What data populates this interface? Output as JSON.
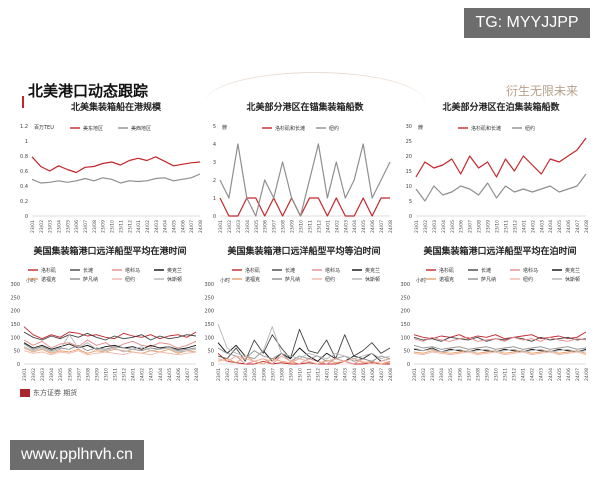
{
  "watermarks": {
    "top": "TG: MYYJJPP",
    "bottom": "www.pplhrvh.cn"
  },
  "slide": {
    "title": "北美港口动态跟踪",
    "slogan": "衍生无限未来",
    "brand": "东方证券 期货"
  },
  "colors": {
    "red": "#c3262b",
    "gray": "#8f8f8f",
    "darkgray": "#444444",
    "pink": "#e58b8b",
    "orange": "#e8a06a",
    "black": "#111111",
    "lightgray": "#b5b5b5",
    "salmon": "#f2b7a8"
  },
  "chart_data": [
    {
      "type": "line",
      "title": "北美集装箱船在港规模",
      "unit": "百万TEU",
      "ylim": [
        0,
        1.2
      ],
      "yticks": [
        "0",
        "0.2",
        "0.4",
        "0.6",
        "0.8",
        "1",
        "1.2"
      ],
      "xticks": [
        "23/01",
        "23/02",
        "23/03",
        "23/04",
        "23/05",
        "23/06",
        "23/07",
        "23/08",
        "23/09",
        "23/10",
        "23/11",
        "23/12",
        "24/01",
        "24/02",
        "24/03",
        "24/04",
        "24/05",
        "24/06",
        "24/07",
        "24/08"
      ],
      "legend": [
        "美东地区",
        "美西地区"
      ],
      "series": [
        {
          "name": "美东地区",
          "color": "red",
          "values": [
            0.79,
            0.66,
            0.6,
            0.67,
            0.62,
            0.58,
            0.65,
            0.66,
            0.7,
            0.72,
            0.68,
            0.74,
            0.77,
            0.74,
            0.79,
            0.73,
            0.67,
            0.69,
            0.71,
            0.72
          ]
        },
        {
          "name": "美西地区",
          "color": "gray",
          "values": [
            0.49,
            0.44,
            0.45,
            0.47,
            0.45,
            0.47,
            0.5,
            0.47,
            0.51,
            0.49,
            0.44,
            0.47,
            0.46,
            0.47,
            0.5,
            0.51,
            0.47,
            0.49,
            0.51,
            0.56
          ]
        }
      ]
    },
    {
      "type": "line",
      "title": "北美部分港区在锚集装箱船数",
      "unit": "艘",
      "ylim": [
        0,
        5
      ],
      "yticks": [
        "0",
        "1",
        "2",
        "3",
        "4",
        "5"
      ],
      "xticks": [
        "23/01",
        "23/02",
        "23/03",
        "23/04",
        "23/05",
        "23/06",
        "23/07",
        "23/08",
        "23/09",
        "23/10",
        "23/11",
        "23/12",
        "24/01",
        "24/02",
        "24/03",
        "24/04",
        "24/05",
        "24/06",
        "24/07",
        "24/08"
      ],
      "legend": [
        "洛杉矶和长滩",
        "纽约"
      ],
      "series": [
        {
          "name": "洛杉矶和长滩",
          "color": "red",
          "values": [
            1,
            0,
            0,
            1,
            1,
            0,
            1,
            0,
            1,
            0,
            1,
            1,
            0,
            1,
            0,
            0,
            1,
            0,
            1,
            1
          ]
        },
        {
          "name": "纽约",
          "color": "gray",
          "values": [
            2,
            1,
            4,
            1,
            0,
            2,
            1,
            3,
            1,
            0,
            2,
            4,
            1,
            3,
            1,
            2,
            4,
            1,
            2,
            3
          ]
        }
      ]
    },
    {
      "type": "line",
      "title": "北美部分港区在泊集装箱船数",
      "unit": "艘",
      "ylim": [
        0,
        30
      ],
      "yticks": [
        "0",
        "5",
        "10",
        "15",
        "20",
        "25",
        "30"
      ],
      "xticks": [
        "23/01",
        "23/02",
        "23/03",
        "23/04",
        "23/05",
        "23/06",
        "23/07",
        "23/08",
        "23/09",
        "23/10",
        "23/11",
        "23/12",
        "24/01",
        "24/02",
        "24/03",
        "24/04",
        "24/05",
        "24/06",
        "24/07",
        "24/08"
      ],
      "legend": [
        "洛杉矶和长滩",
        "纽约"
      ],
      "series": [
        {
          "name": "洛杉矶和长滩",
          "color": "red",
          "values": [
            13,
            18,
            16,
            17,
            19,
            14,
            20,
            16,
            18,
            13,
            19,
            15,
            20,
            17,
            14,
            19,
            18,
            20,
            22,
            26
          ]
        },
        {
          "name": "纽约",
          "color": "gray",
          "values": [
            9,
            5,
            10,
            7,
            8,
            10,
            9,
            7,
            11,
            6,
            10,
            8,
            9,
            8,
            9,
            10,
            8,
            9,
            10,
            14
          ]
        }
      ]
    },
    {
      "type": "line",
      "title": "美国集装箱港口远洋船型平均在港时间",
      "unit": "小时",
      "ylim": [
        0,
        300
      ],
      "yticks": [
        "0",
        "50",
        "100",
        "150",
        "200",
        "250",
        "300"
      ],
      "xticks": [
        "23/01",
        "23/02",
        "23/03",
        "23/04",
        "23/05",
        "23/06",
        "23/07",
        "23/08",
        "23/09",
        "23/10",
        "23/11",
        "23/12",
        "24/01",
        "24/02",
        "24/03",
        "24/04",
        "24/05",
        "24/06",
        "24/07",
        "24/08"
      ],
      "legend": [
        "洛杉矶",
        "长滩",
        "塔科马",
        "奥克兰",
        "诺福克",
        "萨凡纳",
        "纽约",
        "休斯顿"
      ],
      "series": [
        {
          "name": "洛杉矶",
          "color": "red",
          "values": [
            140,
            110,
            95,
            110,
            100,
            120,
            115,
            105,
            110,
            100,
            95,
            115,
            105,
            100,
            110,
            95,
            105,
            110,
            100,
            120
          ]
        },
        {
          "name": "长滩",
          "color": "darkgray",
          "values": [
            120,
            100,
            90,
            105,
            95,
            110,
            100,
            115,
            100,
            90,
            105,
            95,
            100,
            110,
            90,
            105,
            95,
            100,
            110,
            105
          ]
        },
        {
          "name": "塔科马",
          "color": "pink",
          "values": [
            90,
            70,
            85,
            60,
            75,
            80,
            65,
            90,
            70,
            80,
            60,
            75,
            85,
            70,
            65,
            80,
            75,
            60,
            70,
            85
          ]
        },
        {
          "name": "奥克兰",
          "color": "black",
          "values": [
            80,
            60,
            70,
            55,
            65,
            75,
            60,
            70,
            55,
            65,
            70,
            60,
            65,
            55,
            70,
            60,
            65,
            55,
            60,
            70
          ]
        },
        {
          "name": "诺福克",
          "color": "orange",
          "values": [
            60,
            45,
            55,
            40,
            50,
            45,
            55,
            40,
            50,
            45,
            55,
            50,
            45,
            40,
            50,
            45,
            55,
            40,
            50,
            45
          ]
        },
        {
          "name": "萨凡纳",
          "color": "gray",
          "values": [
            75,
            55,
            65,
            50,
            60,
            55,
            70,
            50,
            60,
            55,
            65,
            60,
            55,
            50,
            60,
            55,
            65,
            50,
            55,
            60
          ]
        },
        {
          "name": "纽约",
          "color": "salmon",
          "values": [
            50,
            40,
            45,
            35,
            45,
            40,
            50,
            35,
            40,
            45,
            40,
            35,
            45,
            40,
            35,
            45,
            40,
            35,
            40,
            45
          ]
        },
        {
          "name": "休斯顿",
          "color": "lightgray",
          "values": [
            65,
            50,
            60,
            45,
            55,
            110,
            60,
            80,
            55,
            50,
            60,
            45,
            55,
            65,
            50,
            55,
            60,
            45,
            50,
            55
          ]
        }
      ]
    },
    {
      "type": "line",
      "title": "美国集装箱港口远洋船型平均等泊时间",
      "unit": "小时",
      "ylim": [
        0,
        300
      ],
      "yticks": [
        "0",
        "50",
        "100",
        "150",
        "200",
        "250",
        "300"
      ],
      "xticks": [
        "23/01",
        "23/02",
        "23/03",
        "23/04",
        "23/05",
        "23/06",
        "23/07",
        "23/08",
        "23/09",
        "23/10",
        "23/11",
        "23/12",
        "24/01",
        "24/02",
        "24/03",
        "24/04",
        "24/05",
        "24/06",
        "24/07",
        "24/08"
      ],
      "legend": [
        "洛杉矶",
        "长滩",
        "塔科马",
        "奥克兰",
        "诺福克",
        "萨凡纳",
        "纽约",
        "休斯顿"
      ],
      "series": [
        {
          "name": "洛杉矶",
          "color": "red",
          "values": [
            40,
            10,
            5,
            0,
            0,
            10,
            0,
            5,
            0,
            0,
            5,
            0,
            0,
            0,
            10,
            0,
            0,
            5,
            0,
            0
          ]
        },
        {
          "name": "长滩",
          "color": "darkgray",
          "values": [
            30,
            20,
            60,
            10,
            90,
            40,
            110,
            60,
            20,
            130,
            50,
            40,
            90,
            20,
            110,
            30,
            50,
            80,
            40,
            60
          ]
        },
        {
          "name": "塔科马",
          "color": "pink",
          "values": [
            20,
            10,
            30,
            0,
            10,
            20,
            0,
            30,
            10,
            0,
            20,
            10,
            0,
            20,
            10,
            0,
            20,
            10,
            0,
            10
          ]
        },
        {
          "name": "奥克兰",
          "color": "black",
          "values": [
            80,
            40,
            70,
            30,
            20,
            50,
            10,
            40,
            20,
            60,
            30,
            10,
            40,
            20,
            10,
            30,
            20,
            40,
            10,
            20
          ]
        },
        {
          "name": "诺福克",
          "color": "orange",
          "values": [
            10,
            20,
            5,
            30,
            10,
            0,
            20,
            10,
            5,
            20,
            10,
            0,
            15,
            5,
            10,
            20,
            5,
            10,
            0,
            5
          ]
        },
        {
          "name": "萨凡纳",
          "color": "gray",
          "values": [
            60,
            40,
            30,
            20,
            50,
            30,
            20,
            40,
            10,
            30,
            20,
            30,
            10,
            20,
            30,
            10,
            20,
            10,
            30,
            20
          ]
        },
        {
          "name": "纽约",
          "color": "salmon",
          "values": [
            20,
            10,
            30,
            20,
            10,
            20,
            10,
            30,
            10,
            20,
            10,
            0,
            10,
            20,
            10,
            20,
            10,
            0,
            10,
            20
          ]
        },
        {
          "name": "休斯顿",
          "color": "lightgray",
          "values": [
            150,
            60,
            40,
            30,
            20,
            50,
            140,
            40,
            30,
            20,
            40,
            30,
            20,
            40,
            30,
            20,
            30,
            40,
            20,
            30
          ]
        }
      ]
    },
    {
      "type": "line",
      "title": "美国集装箱港口远洋船型平均在泊时间",
      "unit": "小时",
      "ylim": [
        0,
        300
      ],
      "yticks": [
        "0",
        "50",
        "100",
        "150",
        "200",
        "250",
        "300"
      ],
      "xticks": [
        "23/01",
        "23/02",
        "23/03",
        "23/04",
        "23/05",
        "23/06",
        "23/07",
        "23/08",
        "23/09",
        "23/10",
        "23/11",
        "23/12",
        "24/01",
        "24/02",
        "24/03",
        "24/04",
        "24/05",
        "24/06",
        "24/07",
        "24/08"
      ],
      "legend": [
        "洛杉矶",
        "长滩",
        "塔科马",
        "奥克兰",
        "诺福克",
        "萨凡纳",
        "纽约",
        "休斯顿"
      ],
      "series": [
        {
          "name": "洛杉矶",
          "color": "red",
          "values": [
            110,
            100,
            95,
            105,
            100,
            110,
            95,
            105,
            100,
            110,
            95,
            100,
            105,
            110,
            95,
            100,
            105,
            95,
            100,
            120
          ]
        },
        {
          "name": "长滩",
          "color": "darkgray",
          "values": [
            100,
            90,
            95,
            85,
            100,
            95,
            90,
            100,
            85,
            95,
            90,
            100,
            95,
            85,
            100,
            90,
            95,
            100,
            90,
            95
          ]
        },
        {
          "name": "塔科马",
          "color": "pink",
          "values": [
            95,
            85,
            100,
            90,
            85,
            95,
            100,
            85,
            90,
            95,
            85,
            100,
            90,
            95,
            85,
            100,
            90,
            85,
            95,
            90
          ]
        },
        {
          "name": "奥克兰",
          "color": "black",
          "values": [
            55,
            50,
            60,
            45,
            55,
            50,
            45,
            55,
            50,
            45,
            55,
            50,
            45,
            55,
            50,
            45,
            55,
            50,
            45,
            55
          ]
        },
        {
          "name": "诺福克",
          "color": "orange",
          "values": [
            45,
            40,
            50,
            45,
            40,
            45,
            50,
            40,
            45,
            50,
            40,
            45,
            50,
            40,
            45,
            50,
            40,
            45,
            50,
            40
          ]
        },
        {
          "name": "萨凡纳",
          "color": "gray",
          "values": [
            70,
            60,
            65,
            55,
            60,
            65,
            55,
            60,
            65,
            55,
            60,
            65,
            55,
            60,
            65,
            55,
            60,
            65,
            55,
            60
          ]
        },
        {
          "name": "纽约",
          "color": "salmon",
          "values": [
            40,
            35,
            45,
            40,
            35,
            40,
            45,
            35,
            40,
            45,
            35,
            40,
            45,
            35,
            40,
            45,
            35,
            40,
            45,
            35
          ]
        },
        {
          "name": "休斯顿",
          "color": "lightgray",
          "values": [
            60,
            50,
            55,
            45,
            50,
            55,
            45,
            50,
            55,
            45,
            50,
            55,
            45,
            50,
            55,
            45,
            50,
            55,
            45,
            50
          ]
        }
      ]
    }
  ]
}
